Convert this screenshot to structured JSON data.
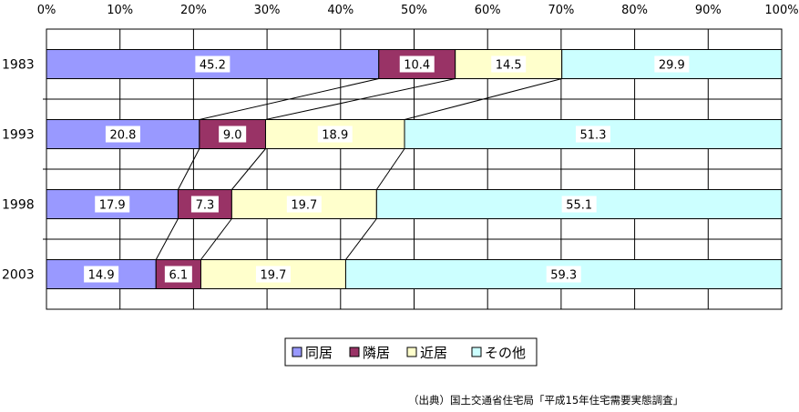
{
  "chart_data": {
    "type": "bar",
    "orientation": "horizontal",
    "stacked": "percent",
    "categories": [
      "1983",
      "1993",
      "1998",
      "2003"
    ],
    "series": [
      {
        "name": "同居",
        "color": "#9999ff",
        "values": [
          45.2,
          20.8,
          17.9,
          14.9
        ]
      },
      {
        "name": "隣居",
        "color": "#993366",
        "values": [
          10.4,
          9.0,
          7.3,
          6.1
        ]
      },
      {
        "name": "近居",
        "color": "#ffffcc",
        "values": [
          14.5,
          18.9,
          19.7,
          19.7
        ]
      },
      {
        "name": "その他",
        "color": "#ccffff",
        "values": [
          29.9,
          51.3,
          55.1,
          59.3
        ]
      }
    ],
    "value_labels": [
      [
        "45.2",
        "10.4",
        "14.5",
        "29.9"
      ],
      [
        "20.8",
        "9.0",
        "18.9",
        "51.3"
      ],
      [
        "17.9",
        "7.3",
        "19.7",
        "55.1"
      ],
      [
        "14.9",
        "6.1",
        "19.7",
        "59.3"
      ]
    ],
    "x_ticks": [
      "0%",
      "10%",
      "20%",
      "30%",
      "40%",
      "50%",
      "60%",
      "70%",
      "80%",
      "90%",
      "100%"
    ],
    "xlim": [
      0,
      100
    ],
    "grid": true,
    "series_lines": true,
    "legend_position": "bottom"
  },
  "source_note": "（出典）国土交通省住宅局「平成15年住宅需要実態調査」"
}
